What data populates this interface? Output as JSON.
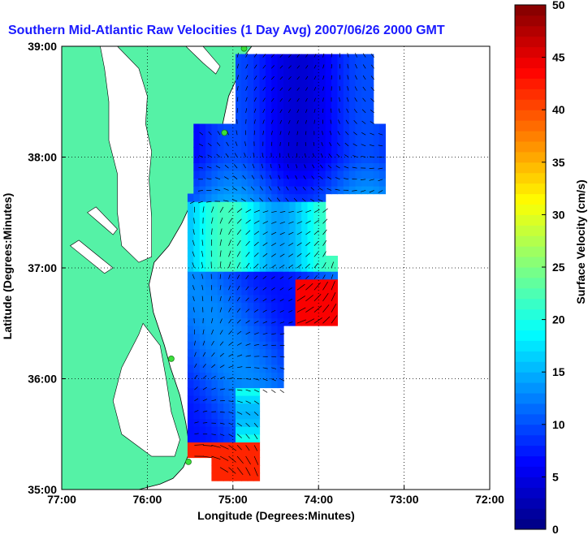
{
  "chart_data": {
    "type": "heatmap",
    "title": "Southern Mid-Atlantic Raw Velocities (1 Day Avg) 2007/06/26 2000 GMT",
    "xlabel": "Longitude (Degrees:Minutes)",
    "ylabel": "Latitude (Degrees:Minutes)",
    "x_ticks": [
      "77:00",
      "76:00",
      "75:00",
      "74:00",
      "73:00",
      "72:00"
    ],
    "y_ticks": [
      "39:00",
      "38:00",
      "37:00",
      "36:00",
      "35:00"
    ],
    "xlim": [
      -77,
      -72
    ],
    "ylim": [
      35,
      39
    ],
    "grid": "dotted",
    "colorbar": {
      "label": "Surface Velocity (cm/s)",
      "range": [
        0,
        50
      ],
      "ticks": [
        "0",
        "5",
        "10",
        "15",
        "20",
        "25",
        "30",
        "35",
        "40",
        "45",
        "50"
      ],
      "colormap": "jet"
    },
    "colors": {
      "land": "#55f2a6",
      "water": "#ffffff",
      "title": "#1a1aff",
      "vectors": "#000000",
      "stations": "#3be03b"
    },
    "stations": [
      {
        "lon": -74.87,
        "lat": 38.98
      },
      {
        "lon": -75.1,
        "lat": 38.22
      },
      {
        "lon": -75.72,
        "lat": 36.18
      },
      {
        "lon": -75.52,
        "lat": 35.25
      }
    ]
  }
}
